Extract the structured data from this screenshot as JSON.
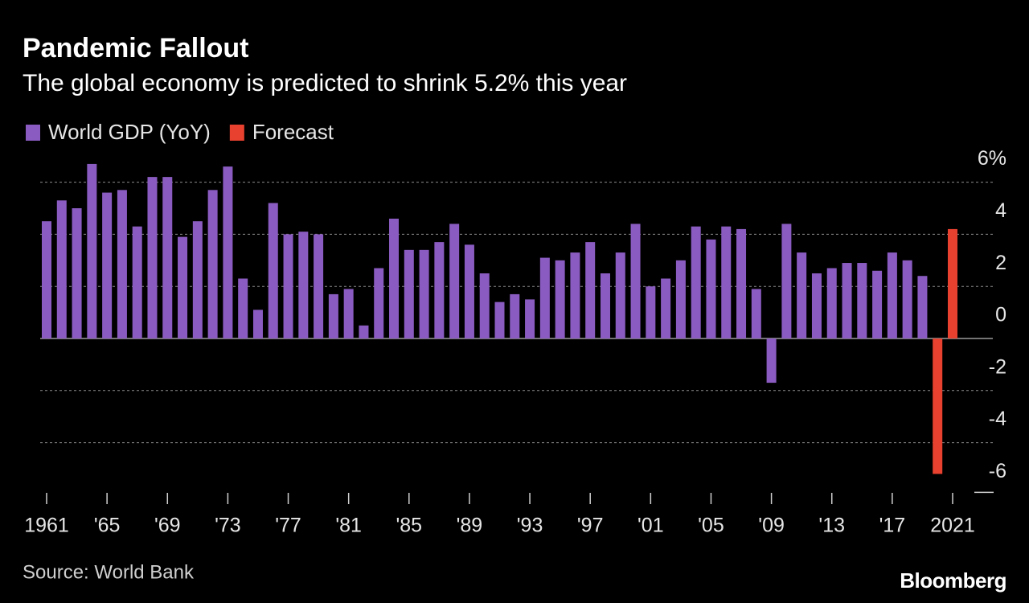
{
  "chart_data": {
    "type": "bar",
    "title": "Pandemic Fallout",
    "subtitle": "The global economy is predicted to shrink 5.2% this year",
    "source": "Source: World Bank",
    "brand": "Bloomberg",
    "categories": [
      "1961",
      null,
      null,
      null,
      "'65",
      null,
      null,
      null,
      "'69",
      null,
      null,
      null,
      "'73",
      null,
      null,
      null,
      "'77",
      null,
      null,
      null,
      "'81",
      null,
      null,
      null,
      "'85",
      null,
      null,
      null,
      "'89",
      null,
      null,
      null,
      "'93",
      null,
      null,
      null,
      "'97",
      null,
      null,
      null,
      "'01",
      null,
      null,
      null,
      "'05",
      null,
      null,
      null,
      "'09",
      null,
      null,
      null,
      "'13",
      null,
      null,
      null,
      "'17",
      null,
      null,
      null,
      "2021"
    ],
    "series": [
      {
        "name": "World GDP (YoY)",
        "color": "#8a5cc1",
        "values": [
          4.5,
          5.3,
          5.0,
          6.7,
          5.6,
          5.7,
          4.3,
          6.2,
          6.2,
          3.9,
          4.5,
          5.7,
          6.6,
          2.3,
          1.1,
          5.2,
          4.0,
          4.1,
          4.0,
          1.7,
          1.9,
          0.5,
          2.7,
          4.6,
          3.4,
          3.4,
          3.7,
          4.4,
          3.6,
          2.5,
          1.4,
          1.7,
          1.5,
          3.1,
          3.0,
          3.3,
          3.7,
          2.5,
          3.3,
          4.4,
          2.0,
          2.3,
          3.0,
          4.3,
          3.8,
          4.3,
          4.2,
          1.9,
          -1.7,
          4.4,
          3.3,
          2.5,
          2.7,
          2.9,
          2.9,
          2.6,
          3.3,
          3.0,
          2.4,
          null,
          null
        ]
      },
      {
        "name": "Forecast",
        "color": "#e8412f",
        "values": [
          null,
          null,
          null,
          null,
          null,
          null,
          null,
          null,
          null,
          null,
          null,
          null,
          null,
          null,
          null,
          null,
          null,
          null,
          null,
          null,
          null,
          null,
          null,
          null,
          null,
          null,
          null,
          null,
          null,
          null,
          null,
          null,
          null,
          null,
          null,
          null,
          null,
          null,
          null,
          null,
          null,
          null,
          null,
          null,
          null,
          null,
          null,
          null,
          null,
          null,
          null,
          null,
          null,
          null,
          null,
          null,
          null,
          null,
          null,
          -5.2,
          4.2
        ]
      }
    ],
    "ylim": [
      -6,
      7
    ],
    "yticks": [
      -6,
      -4,
      -2,
      0,
      2,
      4,
      {
        "value": 6,
        "label": "6%"
      }
    ],
    "grid": true
  }
}
